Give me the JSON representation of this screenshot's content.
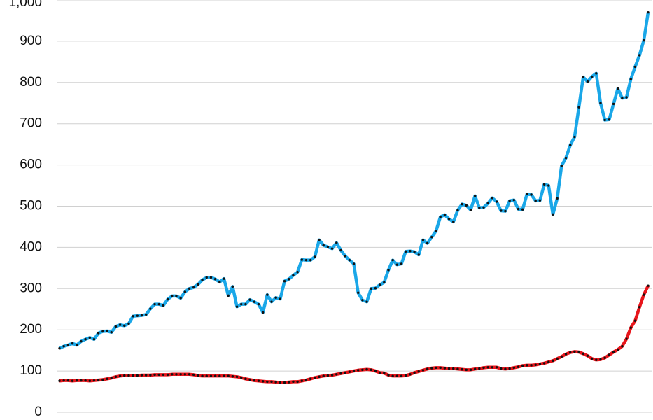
{
  "chart_data": {
    "type": "line",
    "categories": [
      null,
      null,
      null,
      null,
      null,
      null,
      null,
      null,
      null,
      null,
      null,
      null,
      null,
      null,
      null,
      null,
      null,
      null,
      null,
      null,
      null,
      null,
      null,
      null,
      null,
      null,
      null,
      null,
      null,
      null,
      null,
      null,
      null,
      null,
      null,
      null,
      null,
      null,
      null,
      null,
      null,
      null,
      null,
      null,
      null,
      null,
      null,
      null,
      null,
      null,
      null,
      null,
      null,
      null,
      null,
      null,
      null,
      null,
      null,
      null,
      null,
      null,
      null,
      null,
      null,
      null,
      null,
      null,
      null,
      null,
      null,
      null,
      null,
      null,
      null,
      null,
      null,
      null,
      null,
      null,
      null,
      null,
      null,
      null,
      null,
      null,
      null,
      null,
      null,
      null,
      null,
      null,
      null,
      null,
      null,
      null,
      null,
      null,
      null,
      null,
      null,
      null,
      null,
      null,
      null,
      null,
      null,
      null,
      null,
      null,
      null,
      null,
      null,
      null,
      null,
      null,
      null,
      null,
      null,
      null,
      null,
      null,
      null,
      null,
      null,
      null,
      null,
      null,
      null,
      null,
      null,
      null,
      null,
      null,
      null,
      null,
      null
    ],
    "series": [
      {
        "color": "#1aa7e8",
        "values": [
          155,
          160,
          163,
          167,
          163,
          172,
          177,
          181,
          177,
          192,
          196,
          197,
          194,
          208,
          212,
          210,
          215,
          233,
          234,
          235,
          237,
          251,
          262,
          262,
          259,
          274,
          282,
          282,
          277,
          292,
          300,
          303,
          310,
          321,
          327,
          327,
          323,
          316,
          324,
          283,
          305,
          256,
          262,
          262,
          273,
          268,
          262,
          242,
          285,
          268,
          278,
          275,
          318,
          323,
          332,
          340,
          370,
          369,
          369,
          377,
          418,
          405,
          401,
          397,
          411,
          393,
          379,
          369,
          360,
          290,
          272,
          268,
          300,
          301,
          309,
          315,
          345,
          369,
          358,
          360,
          390,
          391,
          389,
          382,
          418,
          410,
          425,
          440,
          474,
          479,
          469,
          462,
          490,
          505,
          502,
          491,
          525,
          496,
          497,
          507,
          520,
          511,
          489,
          488,
          513,
          515,
          493,
          492,
          529,
          528,
          513,
          514,
          553,
          550,
          480,
          519,
          598,
          617,
          648,
          668,
          740,
          813,
          802,
          814,
          822,
          750,
          709,
          710,
          748,
          785,
          762,
          764,
          808,
          838,
          866,
          902,
          970
        ]
      },
      {
        "color": "#e8151b",
        "values": [
          76,
          77,
          77,
          76,
          77,
          77,
          77,
          76,
          77,
          78,
          79,
          81,
          83,
          86,
          88,
          89,
          89,
          89,
          89,
          90,
          90,
          90,
          91,
          91,
          91,
          91,
          92,
          92,
          92,
          92,
          92,
          91,
          89,
          88,
          88,
          88,
          88,
          88,
          88,
          88,
          87,
          86,
          84,
          81,
          79,
          77,
          76,
          75,
          74,
          74,
          73,
          72,
          72,
          73,
          74,
          74,
          76,
          78,
          81,
          84,
          86,
          88,
          89,
          90,
          92,
          94,
          96,
          98,
          100,
          102,
          103,
          104,
          103,
          100,
          96,
          95,
          90,
          88,
          88,
          88,
          89,
          92,
          96,
          99,
          102,
          105,
          107,
          108,
          108,
          107,
          106,
          106,
          105,
          104,
          103,
          103,
          105,
          106,
          108,
          109,
          109,
          109,
          106,
          105,
          106,
          108,
          110,
          113,
          114,
          114,
          115,
          117,
          119,
          122,
          125,
          130,
          135,
          141,
          145,
          147,
          146,
          142,
          137,
          130,
          127,
          128,
          132,
          139,
          146,
          152,
          160,
          178,
          205,
          222,
          255,
          285,
          307
        ]
      }
    ],
    "ylim": [
      0,
      1000
    ],
    "yticks": [
      0,
      100,
      200,
      300,
      400,
      500,
      600,
      700,
      800,
      900,
      {
        "value": 1000,
        "label": "1,000"
      }
    ],
    "grid": true,
    "marker_color": "#111111"
  }
}
